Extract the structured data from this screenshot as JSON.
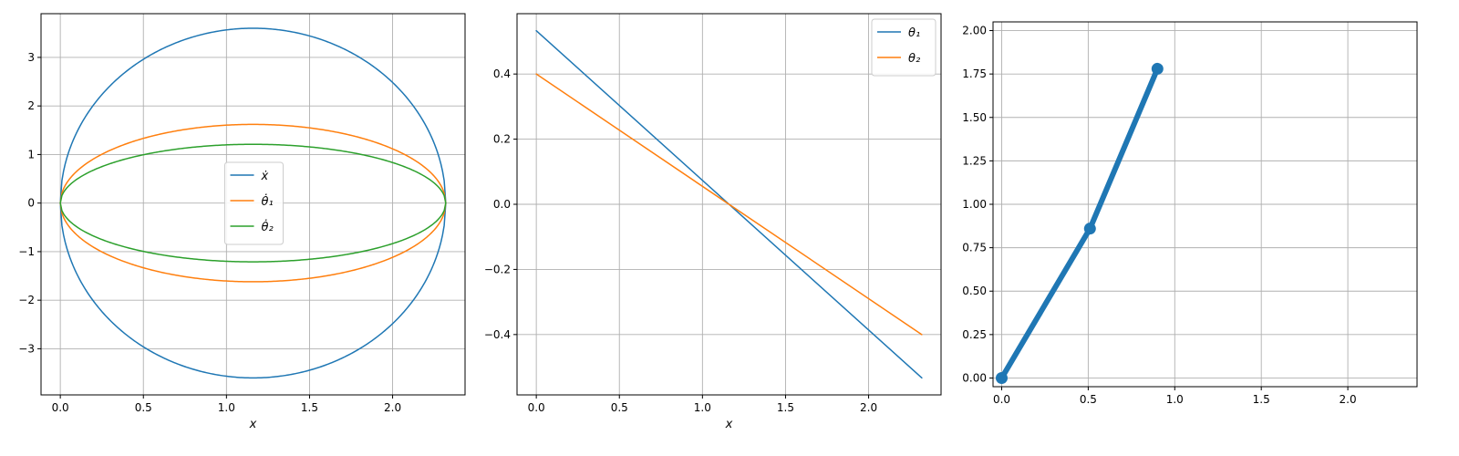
{
  "chart_data": [
    {
      "type": "line",
      "xlabel": "x",
      "ylabel": "",
      "xlim": [
        -0.116,
        2.436
      ],
      "ylim": [
        -3.95,
        3.9
      ],
      "xticks": [
        "0.0",
        "0.5",
        "1.0",
        "1.5",
        "2.0"
      ],
      "yticks": [
        "−3",
        "−2",
        "−1",
        "0",
        "1",
        "2",
        "3"
      ],
      "grid": true,
      "legend": "center",
      "x_range": [
        0,
        2.32
      ],
      "series": [
        {
          "name": "ẋ",
          "color": "#1f77b4",
          "shape": "closed-curve",
          "max_abs_y": 3.6
        },
        {
          "name": "θ̇₁",
          "color": "#ff7f0e",
          "shape": "closed-curve",
          "max_abs_y": 1.62
        },
        {
          "name": "θ̇₂",
          "color": "#2ca02c",
          "shape": "closed-curve",
          "max_abs_y": 1.21
        }
      ]
    },
    {
      "type": "line",
      "xlabel": "x",
      "ylabel": "",
      "xlim": [
        -0.116,
        2.436
      ],
      "ylim": [
        -0.5853,
        0.5853
      ],
      "xticks": [
        "0.0",
        "0.5",
        "1.0",
        "1.5",
        "2.0"
      ],
      "yticks": [
        "−0.4",
        "−0.2",
        "0.0",
        "0.2",
        "0.4"
      ],
      "grid": true,
      "legend": "top-right",
      "series": [
        {
          "name": "θ₁",
          "color": "#1f77b4",
          "x": [
            0,
            2.32
          ],
          "y": [
            0.533,
            -0.533
          ]
        },
        {
          "name": "θ₂",
          "color": "#ff7f0e",
          "x": [
            0,
            2.32
          ],
          "y": [
            0.4,
            -0.4
          ]
        }
      ]
    },
    {
      "type": "line",
      "xlabel": "",
      "ylabel": "",
      "xlim": [
        -0.05,
        2.4
      ],
      "ylim": [
        -0.05,
        2.05
      ],
      "xticks": [
        "0.0",
        "0.5",
        "1.0",
        "1.5",
        "2.0"
      ],
      "yticks": [
        "0.00",
        "0.25",
        "0.50",
        "0.75",
        "1.00",
        "1.25",
        "1.50",
        "1.75",
        "2.00"
      ],
      "grid": true,
      "series": [
        {
          "color": "#1f77b4",
          "markers": true,
          "x": [
            0,
            0.51,
            0.9
          ],
          "y": [
            0,
            0.86,
            1.78
          ]
        }
      ]
    }
  ]
}
